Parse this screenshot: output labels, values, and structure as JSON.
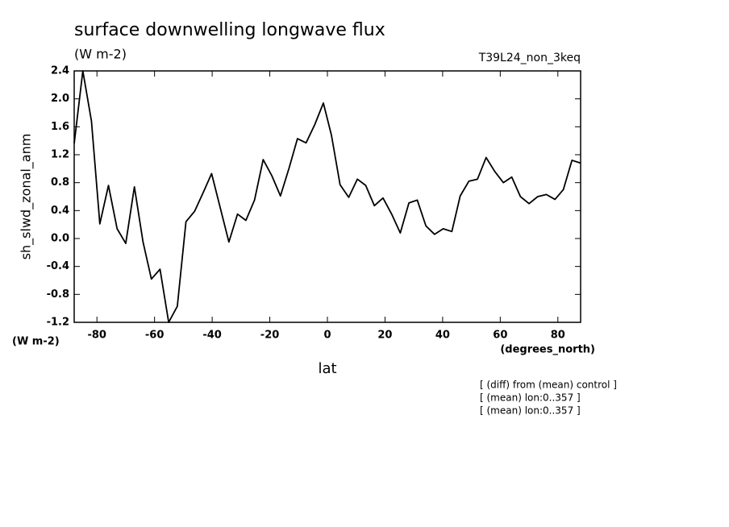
{
  "chart_data": {
    "type": "line",
    "title": "surface downwelling longwave flux",
    "subtitle": "(W m-2)",
    "run_label": "T39L24_non_3keq",
    "y_label": "sh_slwd_zonal_anm",
    "y_units": "(W m-2)",
    "x_units": "(degrees_north)",
    "x_label": "lat",
    "notes": [
      "[ (diff) from (mean) control ]",
      "[ (mean) lon:0..357 ]",
      "[ (mean) lon:0..357 ]"
    ],
    "x": [
      -87.9,
      -84.9,
      -81.9,
      -79.0,
      -76.0,
      -73.0,
      -70.0,
      -67.0,
      -64.0,
      -61.1,
      -58.1,
      -55.1,
      -52.1,
      -49.1,
      -46.1,
      -43.2,
      -40.2,
      -37.2,
      -34.2,
      -31.2,
      -28.3,
      -25.3,
      -22.3,
      -19.3,
      -16.3,
      -13.3,
      -10.4,
      -7.4,
      -4.4,
      -1.4,
      1.4,
      4.4,
      7.4,
      10.4,
      13.3,
      16.3,
      19.3,
      22.3,
      25.3,
      28.3,
      31.2,
      34.2,
      37.2,
      40.2,
      43.2,
      46.1,
      49.1,
      52.1,
      55.1,
      58.1,
      61.1,
      64.0,
      67.0,
      70.0,
      73.0,
      76.0,
      79.0,
      81.9,
      84.9,
      87.9
    ],
    "series": [
      {
        "color": "#000000",
        "values": [
          1.36,
          2.4,
          1.68,
          0.21,
          0.76,
          0.14,
          -0.07,
          0.74,
          -0.05,
          -0.58,
          -0.44,
          -1.2,
          -0.97,
          0.24,
          0.39,
          0.65,
          0.93,
          0.44,
          -0.05,
          0.35,
          0.26,
          0.55,
          1.13,
          0.9,
          0.61,
          1.01,
          1.43,
          1.37,
          1.63,
          1.94,
          1.48,
          0.77,
          0.59,
          0.85,
          0.76,
          0.47,
          0.58,
          0.35,
          0.08,
          0.51,
          0.55,
          0.18,
          0.06,
          0.14,
          0.1,
          0.61,
          0.82,
          0.85,
          1.16,
          0.96,
          0.8,
          0.88,
          0.6,
          0.5,
          0.6,
          0.63,
          0.56,
          0.7,
          1.12,
          1.08
        ]
      }
    ],
    "xlim": [
      -87.9,
      87.9
    ],
    "ylim": [
      -1.2,
      2.4
    ],
    "xticks": [
      -80,
      -60,
      -40,
      -20,
      0,
      20,
      40,
      60,
      80
    ],
    "yticks": [
      -1.2,
      -0.8,
      -0.4,
      {
        "value": 0,
        "label": "0.0"
      },
      0.4,
      0.8,
      1.2,
      1.6,
      {
        "value": 2,
        "label": "2.0"
      },
      2.4
    ]
  }
}
